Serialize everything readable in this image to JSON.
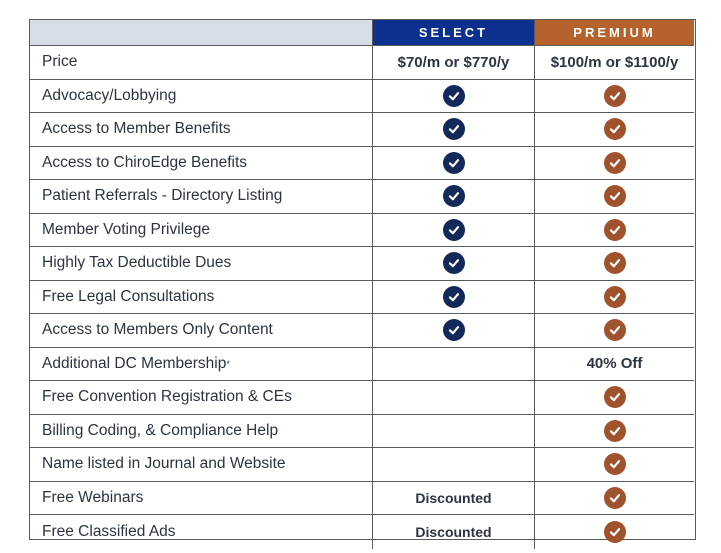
{
  "header": {
    "feature": "",
    "select": "SELECT",
    "premium": "PREMIUM"
  },
  "colors": {
    "select": "#0d2f8e",
    "select_check": "#12295a",
    "premium": "#b5622d",
    "premium_check": "#a0522d"
  },
  "rows": [
    {
      "feature": "Price",
      "select": {
        "type": "text",
        "value": "$70/m or $770/y"
      },
      "premium": {
        "type": "text",
        "value": "$100/m or $1100/y"
      }
    },
    {
      "feature": "Advocacy/Lobbying",
      "select": {
        "type": "check"
      },
      "premium": {
        "type": "check"
      }
    },
    {
      "feature": "Access to Member Benefits",
      "select": {
        "type": "check"
      },
      "premium": {
        "type": "check"
      }
    },
    {
      "feature": "Access to ChiroEdge Benefits",
      "select": {
        "type": "check"
      },
      "premium": {
        "type": "check"
      }
    },
    {
      "feature": "Patient Referrals - Directory Listing",
      "select": {
        "type": "check"
      },
      "premium": {
        "type": "check"
      }
    },
    {
      "feature": "Member Voting Privilege",
      "select": {
        "type": "check"
      },
      "premium": {
        "type": "check"
      }
    },
    {
      "feature": "Highly Tax Deductible Dues",
      "select": {
        "type": "check"
      },
      "premium": {
        "type": "check"
      }
    },
    {
      "feature": "Free Legal Consultations",
      "select": {
        "type": "check"
      },
      "premium": {
        "type": "check"
      }
    },
    {
      "feature": "Access to Members Only Content",
      "select": {
        "type": "check"
      },
      "premium": {
        "type": "check"
      }
    },
    {
      "feature": "Additional DC Membership",
      "feature_mark": "*",
      "select": {
        "type": "empty"
      },
      "premium": {
        "type": "text",
        "value": "40% Off"
      }
    },
    {
      "feature": "Free Convention Registration & CEs",
      "select": {
        "type": "empty"
      },
      "premium": {
        "type": "check"
      }
    },
    {
      "feature": "Billing Coding, & Compliance Help",
      "select": {
        "type": "empty"
      },
      "premium": {
        "type": "check"
      }
    },
    {
      "feature": "Name listed in Journal and Website",
      "select": {
        "type": "empty"
      },
      "premium": {
        "type": "check"
      }
    },
    {
      "feature": "Free Webinars",
      "select": {
        "type": "note",
        "value": "Discounted"
      },
      "premium": {
        "type": "check"
      }
    },
    {
      "feature": "Free Classified Ads",
      "select": {
        "type": "note",
        "value": "Discounted"
      },
      "premium": {
        "type": "check"
      }
    }
  ]
}
